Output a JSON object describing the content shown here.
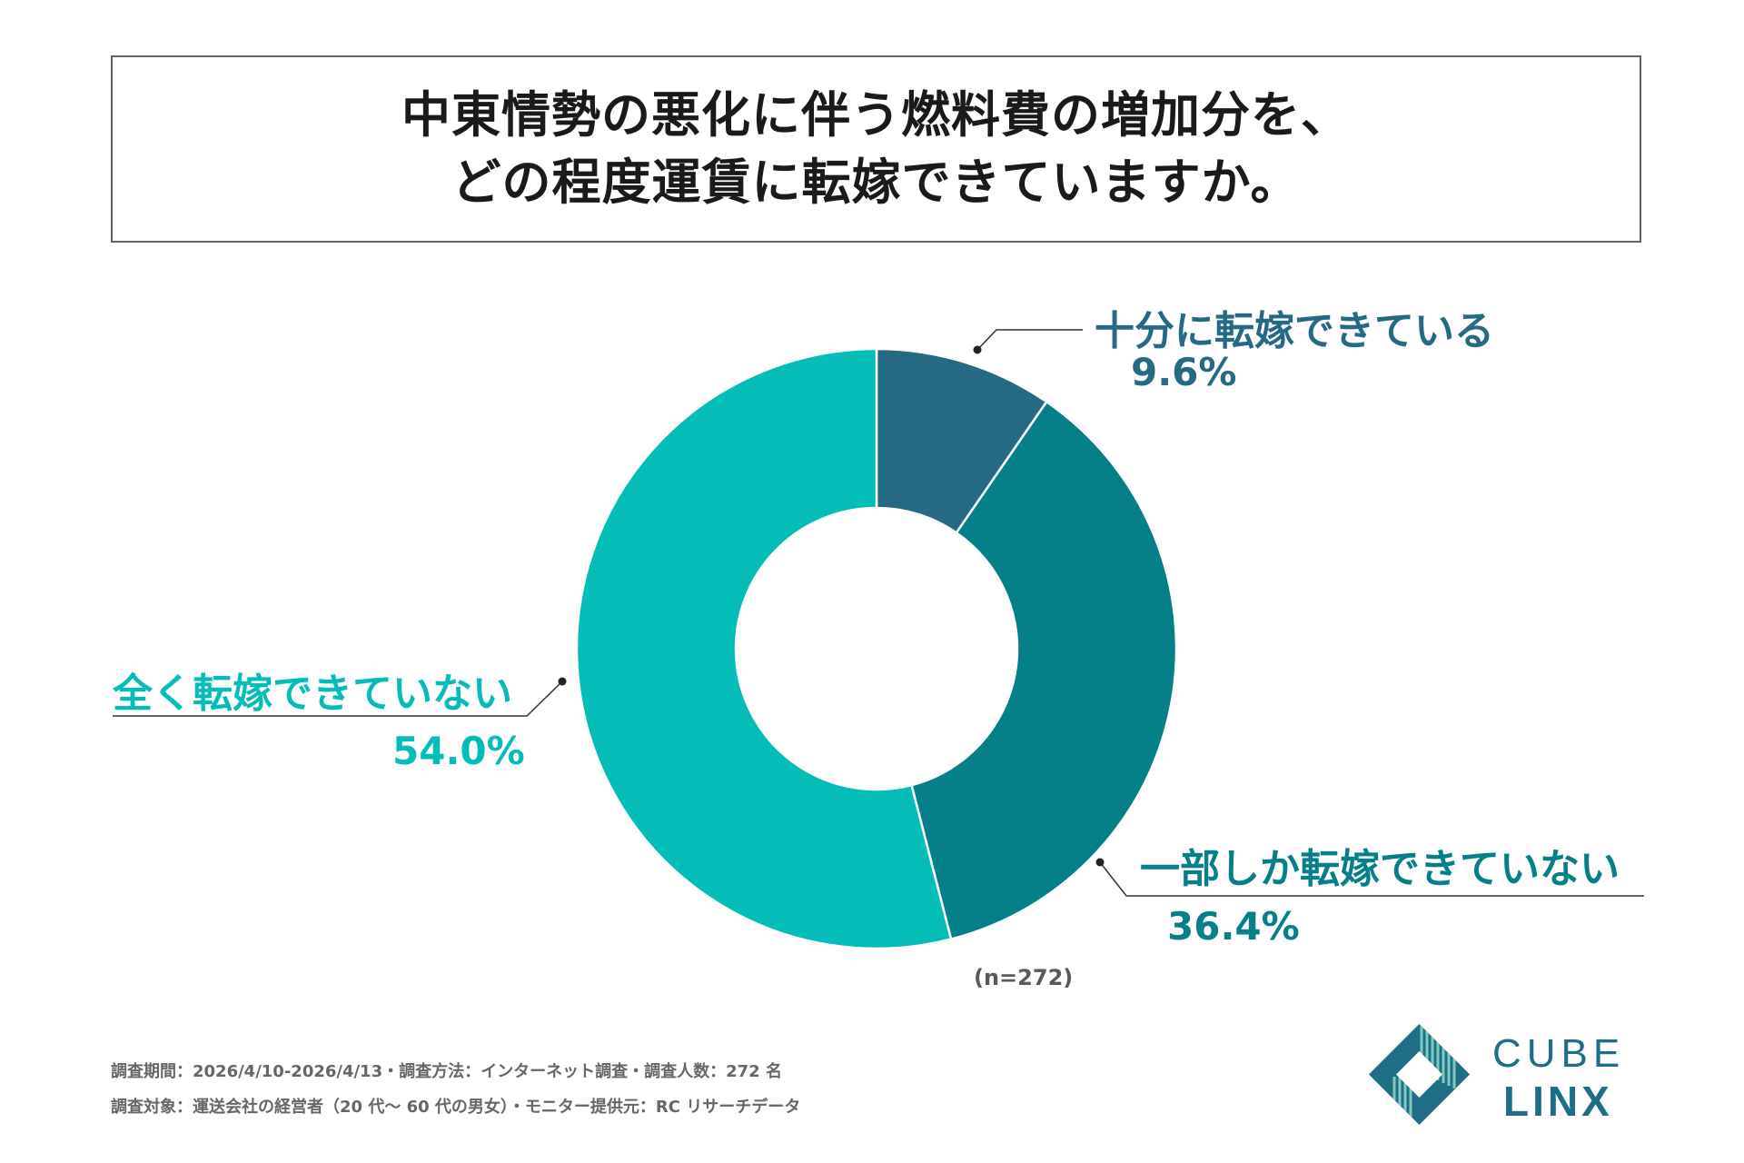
{
  "title": {
    "line1": "中東情勢の悪化に伴う燃料費の増加分を、",
    "line2": "どの程度運賃に転嫁できていますか。"
  },
  "chart_data": {
    "type": "pie",
    "donut": true,
    "categories": [
      "十分に転嫁できている",
      "一部しか転嫁できていない",
      "全く転嫁できていない"
    ],
    "values": [
      9.6,
      36.4,
      54.0
    ],
    "value_labels": [
      "9.6%",
      "36.4%",
      "54.0%"
    ],
    "colors": [
      "#256a84",
      "#05808a",
      "#04bcb8"
    ],
    "label_colors": [
      "#256a84",
      "#05808a",
      "#04bcb8"
    ],
    "start": "12 o'clock, clockwise"
  },
  "note": "(n=272)",
  "footer": {
    "line1": "調査期間：2026/4/10-2026/4/13・調査方法：インターネット調査・調査人数：272 名",
    "line2": "調査対象：運送会社の経営者（20 代～ 60 代の男女）・モニター提供元：RC リサーチデータ"
  },
  "logo": {
    "word1": "CUBE",
    "word2": "LINX",
    "color": "#1f6e87",
    "accent": "#7dc9c0"
  }
}
